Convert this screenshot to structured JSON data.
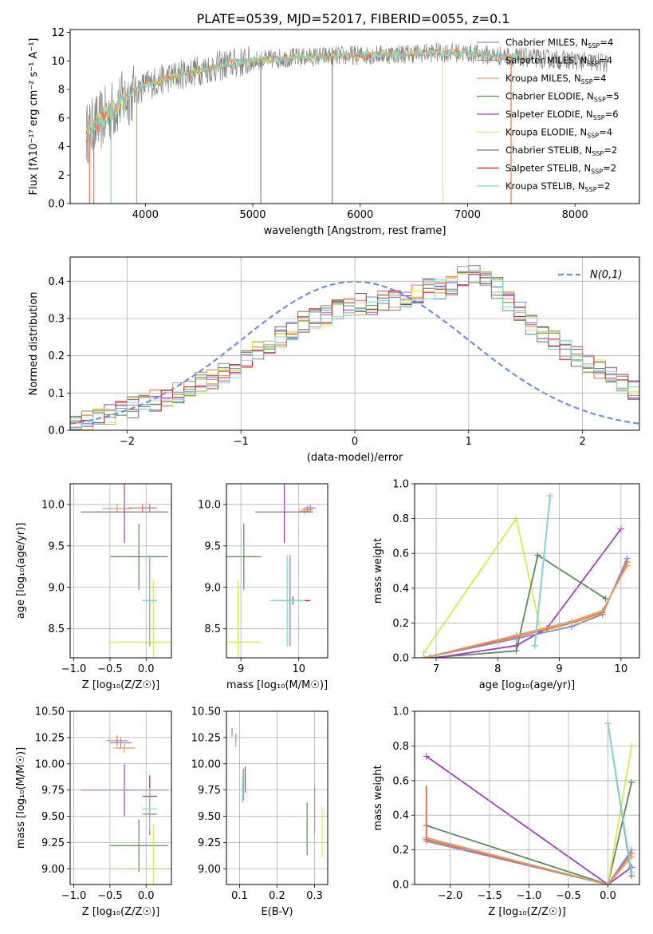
{
  "title": "PLATE=0539, MJD=52017, FIBERID=0055, z=0.1",
  "colors": {
    "chabrier_miles": "#6f8fe0",
    "salpeter_miles": "#f07050",
    "kroupa_miles": "#e0a060",
    "chabrier_elodie": "#5a8a5a",
    "salpeter_elodie": "#a040c0",
    "kroupa_elodie": "#d8ec50",
    "chabrier_stelib": "#808080",
    "salpeter_stelib": "#c03030",
    "kroupa_stelib": "#80d8d8",
    "normal_curve": "#6f8fe0",
    "grid": "#b0b0b0"
  },
  "legend_entries": [
    {
      "name": "Chabrier MILES",
      "n": "4",
      "color_key": "chabrier_miles"
    },
    {
      "name": "Salpeter MILES",
      "n": "4",
      "color_key": "salpeter_miles"
    },
    {
      "name": "Kroupa MILES",
      "n": "4",
      "color_key": "kroupa_miles"
    },
    {
      "name": "Chabrier ELODIE",
      "n": "5",
      "color_key": "chabrier_elodie"
    },
    {
      "name": "Salpeter ELODIE",
      "n": "6",
      "color_key": "salpeter_elodie"
    },
    {
      "name": "Kroupa ELODIE",
      "n": "4",
      "color_key": "kroupa_elodie"
    },
    {
      "name": "Chabrier STELIB",
      "n": "2",
      "color_key": "chabrier_stelib"
    },
    {
      "name": "Salpeter STELIB",
      "n": "2",
      "color_key": "salpeter_stelib"
    },
    {
      "name": "Kroupa STELIB",
      "n": "2",
      "color_key": "kroupa_stelib"
    }
  ],
  "chart_data": [
    {
      "id": "spectrum",
      "type": "line",
      "xlabel": "wavelength [Angstrom, rest frame]",
      "ylabel": "Flux [fλ10⁻¹⁷ erg cm⁻² s⁻¹ A⁻¹]",
      "xlim": [
        3300,
        8600
      ],
      "ylim": [
        0,
        12.2
      ],
      "xticks": [
        4000,
        5000,
        6000,
        7000,
        8000
      ],
      "yticks": [
        0,
        2,
        4,
        6,
        8,
        10,
        12
      ],
      "grid": false,
      "legend_position": "right",
      "continuum": {
        "x": [
          3450,
          3550,
          3650,
          3750,
          3850,
          4000,
          4200,
          4400,
          4600,
          4800,
          5000,
          5300,
          5600,
          6000,
          6400,
          6800,
          7000,
          7200,
          7400,
          7600,
          7800,
          8000,
          8200,
          8400
        ],
        "y": [
          4.9,
          5.6,
          6.2,
          7.0,
          7.6,
          8.3,
          8.8,
          9.2,
          9.5,
          9.8,
          10.0,
          10.2,
          10.3,
          10.4,
          10.5,
          10.6,
          10.55,
          10.4,
          10.3,
          10.2,
          10.1,
          10.0,
          9.9,
          9.8
        ]
      },
      "model_start": 3450,
      "model_end": 7600,
      "observed_start": 3450,
      "observed_end": 8300,
      "spikes": [
        {
          "x": 3480,
          "y_from": 4.9,
          "y_to": 0
        },
        {
          "x": 3520,
          "y_from": 5.2,
          "y_to": 0
        },
        {
          "x": 3680,
          "y_from": 6.5,
          "y_to": 0
        },
        {
          "x": 3920,
          "y_from": 8.0,
          "y_to": 0
        },
        {
          "x": 5075,
          "y_from": 10.0,
          "y_to": 0
        },
        {
          "x": 5740,
          "y_from": 10.3,
          "y_to": 0
        },
        {
          "x": 6770,
          "y_from": 10.6,
          "y_to": 0
        },
        {
          "x": 7405,
          "y_from": 10.3,
          "y_to": 0
        }
      ]
    },
    {
      "id": "residual-histogram",
      "type": "line",
      "xlabel": "(data-model)/error",
      "ylabel": "Normed distribution",
      "xlim": [
        -2.5,
        2.5
      ],
      "ylim": [
        0,
        0.465
      ],
      "xticks": [
        -2,
        -1,
        0,
        1,
        2
      ],
      "yticks": [
        0.0,
        0.1,
        0.2,
        0.3,
        0.4
      ],
      "grid": true,
      "legend_position": "top-right",
      "legend_label": "N(0,1)",
      "bin_edges_from": -2.5,
      "bin_width": 0.1,
      "base_values": [
        0.03,
        0.03,
        0.04,
        0.04,
        0.05,
        0.06,
        0.07,
        0.08,
        0.09,
        0.1,
        0.11,
        0.13,
        0.14,
        0.15,
        0.17,
        0.19,
        0.21,
        0.23,
        0.25,
        0.27,
        0.29,
        0.3,
        0.31,
        0.32,
        0.33,
        0.34,
        0.34,
        0.35,
        0.35,
        0.35,
        0.37,
        0.38,
        0.38,
        0.39,
        0.41,
        0.42,
        0.4,
        0.38,
        0.35,
        0.32,
        0.28,
        0.26,
        0.24,
        0.22,
        0.2,
        0.18,
        0.16,
        0.14,
        0.13,
        0.11,
        0.09,
        0.08,
        0.07,
        0.06,
        0.05,
        0.05,
        0.04,
        0.04,
        0.04,
        0.05,
        0.05,
        0.05,
        0.06
      ],
      "normal_curve": {
        "mu": 0,
        "sigma": 1
      }
    },
    {
      "id": "age-vs-z",
      "type": "scatter",
      "xlabel": "Z [log₁₀(Z/Z☉)]",
      "ylabel": "age  [log₁₀(age/yr)]",
      "xlim": [
        -1.05,
        0.35
      ],
      "ylim": [
        8.15,
        10.25
      ],
      "xticks": [
        -1.0,
        -0.5,
        0.0
      ],
      "yticks": [
        8.5,
        9.0,
        9.5,
        10.0
      ],
      "grid": true,
      "points": [
        {
          "series": "chabrier_miles",
          "x": 0.05,
          "xerr": 0.1,
          "y": 9.96,
          "yerr": 0.1
        },
        {
          "series": "salpeter_miles",
          "x": -0.05,
          "xerr": 0.2,
          "y": 9.96,
          "yerr": 0.1
        },
        {
          "series": "kroupa_miles",
          "x": -0.4,
          "xerr": 0.2,
          "y": 9.95,
          "yerr": 0.1
        },
        {
          "series": "chabrier_elodie",
          "x": -0.1,
          "xerr": 0.4,
          "y": 9.37,
          "yerr": 0.8
        },
        {
          "series": "salpeter_elodie",
          "x": -0.3,
          "xerr": 0.6,
          "y": 9.91,
          "yerr": 0.75
        },
        {
          "series": "kroupa_elodie",
          "x": 0.1,
          "xerr": 0.6,
          "y": 8.34,
          "yerr": 1.5
        },
        {
          "series": "chabrier_stelib",
          "x": 0.05,
          "xerr": 0.1,
          "y": 8.84,
          "yerr": 1.1
        },
        {
          "series": "salpeter_stelib",
          "x": 0.05,
          "xerr": 0.1,
          "y": 8.84,
          "yerr": 1.1
        },
        {
          "series": "kroupa_stelib",
          "x": 0.05,
          "xerr": 0.1,
          "y": 8.84,
          "yerr": 1.1
        }
      ]
    },
    {
      "id": "age-vs-mass",
      "type": "scatter",
      "xlabel": "mass [log₁₀(M/M☉)]",
      "ylabel": "",
      "xlim": [
        8.75,
        10.5
      ],
      "ylim": [
        8.15,
        10.25
      ],
      "xticks": [
        9,
        10
      ],
      "yticks": [
        8.5,
        9.0,
        9.5,
        10.0
      ],
      "grid": true,
      "points": [
        {
          "series": "chabrier_miles",
          "x": 10.2,
          "xerr": 0.1,
          "y": 9.96,
          "yerr": 0.08
        },
        {
          "series": "salpeter_miles",
          "x": 10.15,
          "xerr": 0.1,
          "y": 9.94,
          "yerr": 0.08
        },
        {
          "series": "kroupa_miles",
          "x": 10.1,
          "xerr": 0.1,
          "y": 9.92,
          "yerr": 0.08
        },
        {
          "series": "chabrier_elodie",
          "x": 9.05,
          "xerr": 0.3,
          "y": 9.37,
          "yerr": 0.8
        },
        {
          "series": "salpeter_elodie",
          "x": 9.75,
          "xerr": 0.5,
          "y": 9.91,
          "yerr": 0.75
        },
        {
          "series": "kroupa_elodie",
          "x": 8.95,
          "xerr": 0.4,
          "y": 8.34,
          "yerr": 1.5
        },
        {
          "series": "chabrier_stelib",
          "x": 9.85,
          "xerr": 0.3,
          "y": 8.84,
          "yerr": 1.1
        },
        {
          "series": "salpeter_stelib",
          "x": 9.9,
          "xerr": 0.3,
          "y": 8.84,
          "yerr": 0.1
        },
        {
          "series": "kroupa_stelib",
          "x": 9.8,
          "xerr": 0.3,
          "y": 8.84,
          "yerr": 1.1
        }
      ]
    },
    {
      "id": "mass-weight-vs-age",
      "type": "line",
      "xlabel": "age  [log₁₀(age/yr)]",
      "ylabel": "mass weight",
      "xlim": [
        6.65,
        10.3
      ],
      "ylim": [
        0,
        1.0
      ],
      "xticks": [
        7,
        8,
        9,
        10
      ],
      "yticks": [
        0.0,
        0.2,
        0.4,
        0.6,
        0.8,
        1.0
      ],
      "grid": true,
      "series": [
        {
          "key": "kroupa_elodie",
          "x": [
            6.8,
            8.3,
            8.7,
            9.7
          ],
          "y": [
            0.03,
            0.8,
            0.15,
            0.25
          ]
        },
        {
          "key": "chabrier_elodie",
          "x": [
            6.9,
            8.3,
            8.65,
            9.75
          ],
          "y": [
            0.0,
            0.04,
            0.59,
            0.34
          ]
        },
        {
          "key": "salpeter_elodie",
          "x": [
            7.0,
            8.3,
            8.8,
            10.0
          ],
          "y": [
            0.0,
            0.07,
            0.17,
            0.74
          ]
        },
        {
          "key": "chabrier_miles",
          "x": [
            6.8,
            8.3,
            9.2,
            9.7,
            10.1
          ],
          "y": [
            0.0,
            0.11,
            0.18,
            0.25,
            0.57
          ]
        },
        {
          "key": "salpeter_miles",
          "x": [
            6.8,
            8.3,
            9.2,
            9.7,
            10.1
          ],
          "y": [
            0.0,
            0.12,
            0.2,
            0.26,
            0.55
          ]
        },
        {
          "key": "kroupa_miles",
          "x": [
            6.8,
            8.3,
            9.2,
            9.7,
            10.1
          ],
          "y": [
            0.0,
            0.13,
            0.21,
            0.27,
            0.53
          ]
        },
        {
          "key": "chabrier_stelib",
          "x": [
            8.6,
            8.85
          ],
          "y": [
            0.07,
            0.93
          ]
        },
        {
          "key": "kroupa_stelib",
          "x": [
            8.6,
            8.85
          ],
          "y": [
            0.07,
            0.93
          ]
        }
      ]
    },
    {
      "id": "mass-vs-z",
      "type": "scatter",
      "xlabel": "Z [log₁₀(Z/Z☉)]",
      "ylabel": "mass [log₁₀(M/M☉)]",
      "xlim": [
        -1.05,
        0.35
      ],
      "ylim": [
        8.85,
        10.5
      ],
      "xticks": [
        -1.0,
        -0.5,
        0.0
      ],
      "yticks": [
        9.0,
        9.25,
        9.5,
        9.75,
        10.0,
        10.25,
        10.5
      ],
      "grid": true,
      "points": [
        {
          "series": "chabrier_miles",
          "x": -0.35,
          "xerr": 0.15,
          "y": 10.2,
          "yerr": 0.1
        },
        {
          "series": "salpeter_miles",
          "x": -0.4,
          "xerr": 0.15,
          "y": 10.22,
          "yerr": 0.1
        },
        {
          "series": "kroupa_miles",
          "x": -0.3,
          "xerr": 0.15,
          "y": 10.15,
          "yerr": 0.1
        },
        {
          "series": "chabrier_elodie",
          "x": -0.1,
          "xerr": 0.4,
          "y": 9.22,
          "yerr": 0.5
        },
        {
          "series": "salpeter_elodie",
          "x": -0.3,
          "xerr": 0.6,
          "y": 9.75,
          "yerr": 0.5
        },
        {
          "series": "kroupa_elodie",
          "x": 0.1,
          "xerr": 0.6,
          "y": 9.0,
          "yerr": 0.85
        },
        {
          "series": "chabrier_stelib",
          "x": 0.05,
          "xerr": 0.1,
          "y": 9.52,
          "yerr": 0.4
        },
        {
          "series": "salpeter_stelib",
          "x": 0.05,
          "xerr": 0.1,
          "y": 9.69,
          "yerr": 0.4
        },
        {
          "series": "kroupa_stelib",
          "x": 0.05,
          "xerr": 0.1,
          "y": 9.57,
          "yerr": 0.4
        }
      ]
    },
    {
      "id": "mass-vs-ebv",
      "type": "scatter",
      "xlabel": "E(B-V)",
      "ylabel": "",
      "xlim": [
        0.065,
        0.335
      ],
      "ylim": [
        8.85,
        10.5
      ],
      "xticks": [
        0.1,
        0.2,
        0.3
      ],
      "yticks": [
        9.0,
        9.25,
        9.5,
        9.75,
        10.0,
        10.25,
        10.5
      ],
      "grid": true,
      "points": [
        {
          "series": "chabrier_miles",
          "x": 0.08,
          "xerr": 0.0,
          "y": 10.3,
          "yerr": 0.08
        },
        {
          "series": "salpeter_miles",
          "x": 0.09,
          "xerr": 0.0,
          "y": 10.25,
          "yerr": 0.08
        },
        {
          "series": "kroupa_miles",
          "x": 0.09,
          "xerr": 0.0,
          "y": 10.2,
          "yerr": 0.08
        },
        {
          "series": "chabrier_elodie",
          "x": 0.28,
          "xerr": 0.0,
          "y": 9.38,
          "yerr": 0.5
        },
        {
          "series": "salpeter_elodie",
          "x": 0.3,
          "xerr": 0.0,
          "y": 9.56,
          "yerr": 0.45
        },
        {
          "series": "kroupa_elodie",
          "x": 0.32,
          "xerr": 0.0,
          "y": 9.35,
          "yerr": 0.48
        },
        {
          "series": "chabrier_stelib",
          "x": 0.11,
          "xerr": 0.0,
          "y": 9.8,
          "yerr": 0.3
        },
        {
          "series": "salpeter_stelib",
          "x": 0.115,
          "xerr": 0.0,
          "y": 9.85,
          "yerr": 0.25
        },
        {
          "series": "kroupa_stelib",
          "x": 0.108,
          "xerr": 0.0,
          "y": 9.75,
          "yerr": 0.25
        }
      ]
    },
    {
      "id": "mass-weight-vs-z",
      "type": "line",
      "xlabel": "Z [log₁₀(Z/Z☉)]",
      "ylabel": "mass weight",
      "xlim": [
        -2.45,
        0.4
      ],
      "ylim": [
        0,
        1.0
      ],
      "xticks": [
        -2.0,
        -1.5,
        -1.0,
        -0.5,
        0.0
      ],
      "yticks": [
        0.0,
        0.2,
        0.4,
        0.6,
        0.8,
        1.0
      ],
      "grid": true,
      "series": [
        {
          "key": "salpeter_elodie",
          "x": [
            -2.3,
            0.0,
            0.3
          ],
          "y": [
            0.74,
            0.0,
            0.1
          ]
        },
        {
          "key": "chabrier_elodie",
          "x": [
            -2.3,
            0.0,
            0.3
          ],
          "y": [
            0.34,
            0.0,
            0.59
          ]
        },
        {
          "key": "kroupa_elodie",
          "x": [
            -2.3,
            0.0,
            0.3
          ],
          "y": [
            0.26,
            0.0,
            0.8
          ]
        },
        {
          "key": "chabrier_miles",
          "x": [
            -2.3,
            0.0,
            0.3
          ],
          "y": [
            0.25,
            0.0,
            0.2
          ]
        },
        {
          "key": "salpeter_miles",
          "x": [
            -2.3,
            0.0,
            0.3
          ],
          "y": [
            0.26,
            0.0,
            0.18
          ]
        },
        {
          "key": "kroupa_miles",
          "x": [
            -2.3,
            0.0,
            0.3
          ],
          "y": [
            0.27,
            0.0,
            0.16
          ]
        },
        {
          "key": "chabrier_stelib",
          "x": [
            0.0,
            0.3
          ],
          "y": [
            0.93,
            0.05
          ]
        },
        {
          "key": "kroupa_stelib",
          "x": [
            0.0,
            0.3
          ],
          "y": [
            0.93,
            0.07
          ]
        }
      ],
      "vertical_spread": {
        "x": -2.3,
        "y_from": 0.25,
        "y_to": 0.57
      }
    }
  ]
}
